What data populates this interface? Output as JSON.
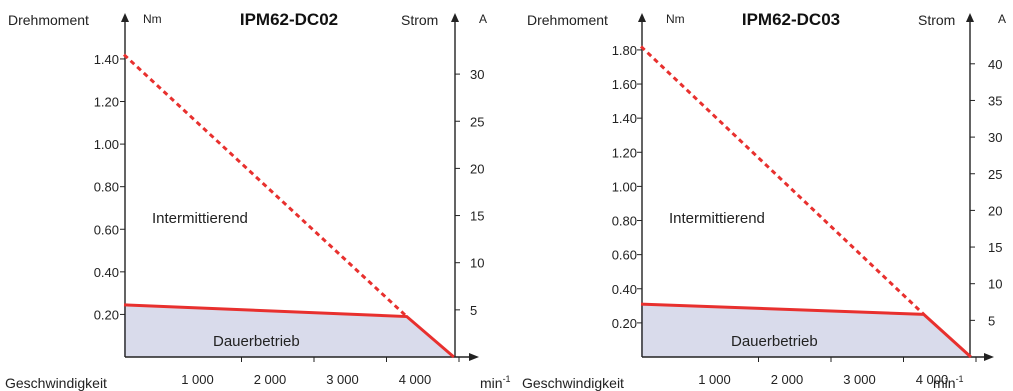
{
  "chart_data": [
    {
      "type": "area",
      "title": "IPM62-DC02",
      "xlabel": "Geschwindigkeit",
      "x_unit": "min-1",
      "ylabel_left": "Drehmoment",
      "y_unit_left": "Nm",
      "ylabel_right": "Strom",
      "y_unit_right": "A",
      "xlim": [
        0,
        4800
      ],
      "ylim": [
        0,
        1.55
      ],
      "y2lim": [
        0,
        33.5
      ],
      "x_ticks": [
        1000,
        2000,
        3000,
        4000
      ],
      "x_tick_labels": [
        "1 000",
        "2 000",
        "3 000",
        "4 000"
      ],
      "y_ticks": [
        0.2,
        0.4,
        0.6,
        0.8,
        1.0,
        1.2,
        1.4
      ],
      "y_tick_labels": [
        "0.20",
        "0.40",
        "0.60",
        "0.80",
        "1.00",
        "1.20",
        "1.40"
      ],
      "y2_ticks": [
        5,
        10,
        15,
        20,
        25,
        30
      ],
      "y2_tick_labels": [
        "5",
        "10",
        "15",
        "20",
        "25",
        "30"
      ],
      "continuous_label": "Dauerbetrieb",
      "intermittent_label": "Intermittierend",
      "continuous": {
        "x": [
          0,
          3900,
          4550
        ],
        "y": [
          0.245,
          0.19,
          0.0
        ]
      },
      "intermittent": {
        "x": [
          0,
          3900
        ],
        "y": [
          1.42,
          0.19
        ]
      },
      "colors": {
        "curve": "#e8302e",
        "fill": "#d9dbeb"
      }
    },
    {
      "type": "area",
      "title": "IPM62-DC03",
      "xlabel": "Geschwindigkeit",
      "x_unit": "min-1",
      "ylabel_left": "Drehmoment",
      "y_unit_left": "Nm",
      "ylabel_right": "Strom",
      "y_unit_right": "A",
      "xlim": [
        0,
        4800
      ],
      "ylim": [
        0,
        1.9
      ],
      "y2lim": [
        0,
        43
      ],
      "x_ticks": [
        1000,
        2000,
        3000,
        4000
      ],
      "x_tick_labels": [
        "1 000",
        "2 000",
        "3 000",
        "4 000"
      ],
      "y_ticks": [
        0.2,
        0.4,
        0.6,
        0.8,
        1.0,
        1.2,
        1.4,
        1.6,
        1.8
      ],
      "y_tick_labels": [
        "0.20",
        "0.40",
        "0.60",
        "0.80",
        "1.00",
        "1.20",
        "1.40",
        "1.60",
        "1.80"
      ],
      "y2_ticks": [
        5,
        10,
        15,
        20,
        25,
        30,
        35,
        40
      ],
      "y2_tick_labels": [
        "5",
        "10",
        "15",
        "20",
        "25",
        "30",
        "35",
        "40"
      ],
      "continuous_label": "Dauerbetrieb",
      "intermittent_label": "Intermittierend",
      "continuous": {
        "x": [
          0,
          3900,
          4550
        ],
        "y": [
          0.31,
          0.25,
          0.0
        ]
      },
      "intermittent": {
        "x": [
          0,
          3900
        ],
        "y": [
          1.82,
          0.25
        ]
      },
      "colors": {
        "curve": "#e8302e",
        "fill": "#d9dbeb"
      }
    }
  ]
}
